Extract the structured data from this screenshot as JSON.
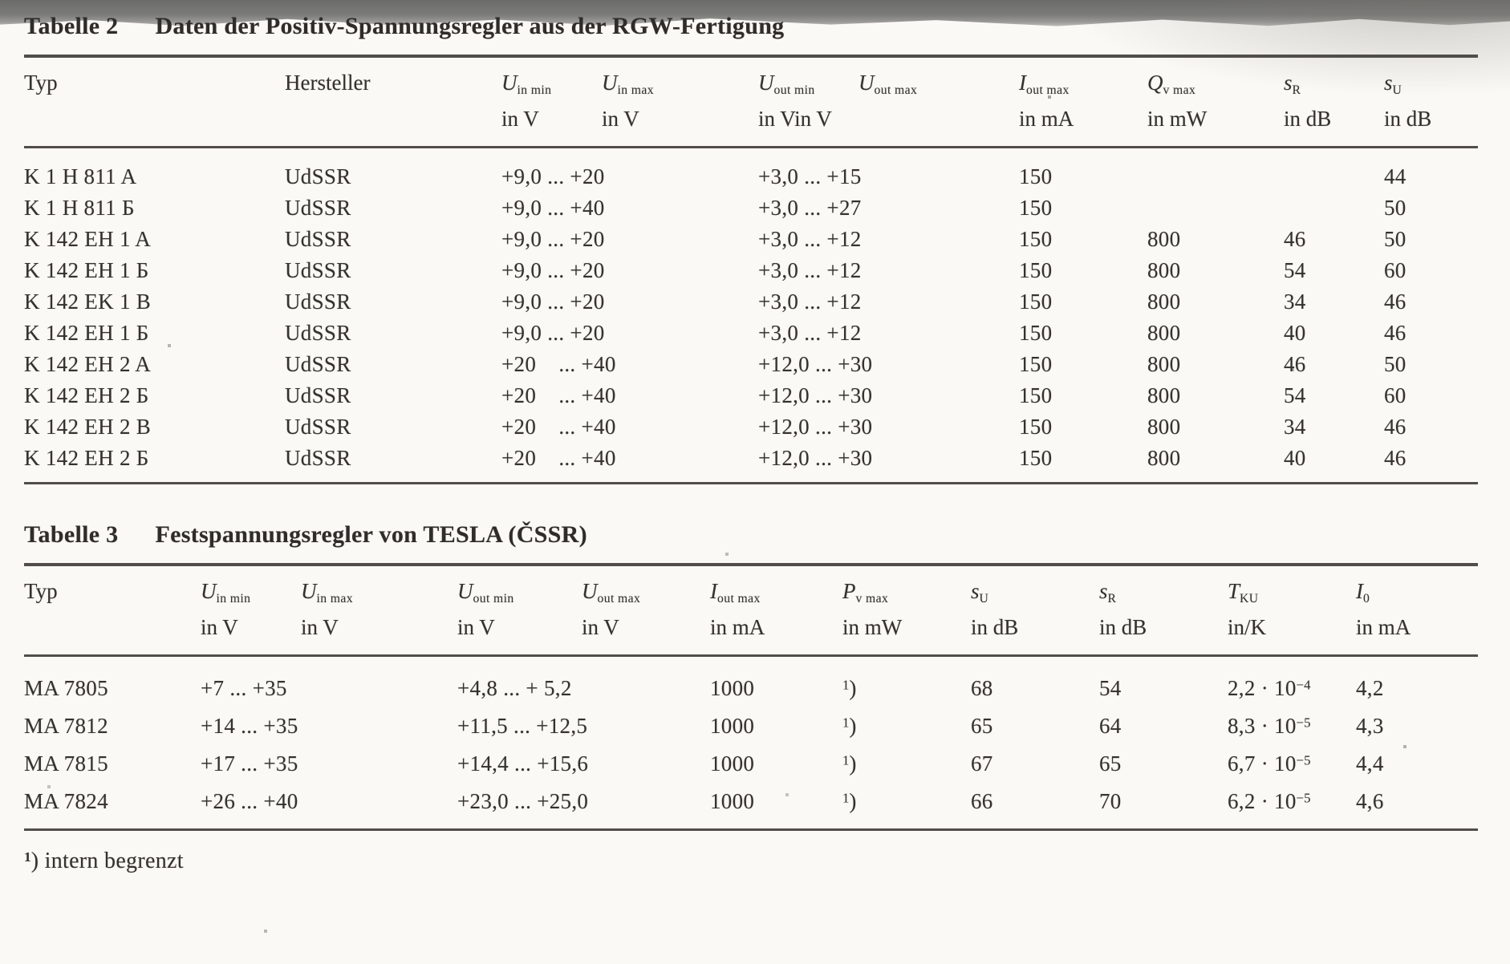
{
  "table2": {
    "label": "Tabelle 2",
    "caption": "Daten der Positiv-Spannungsregler aus der RGW-Fertigung",
    "columns": [
      {
        "sym": "Typ",
        "sub": "",
        "unit": "",
        "plain": true
      },
      {
        "sym": "Hersteller",
        "sub": "",
        "unit": "",
        "plain": true
      },
      {
        "sym": "U",
        "sub": "in min",
        "unit": "in V"
      },
      {
        "sym": "U",
        "sub": "in max",
        "unit": "in V"
      },
      {
        "sym": "U",
        "sub": "out min",
        "unit": "in Vin V"
      },
      {
        "sym": "U",
        "sub": "out max",
        "unit": ""
      },
      {
        "sym": "I",
        "sub": "out max",
        "unit": "in mA"
      },
      {
        "sym": "Q",
        "sub": "v max",
        "unit": "in mW"
      },
      {
        "sym": "s",
        "sub": "R",
        "unit": "in dB"
      },
      {
        "sym": "s",
        "sub": "U",
        "unit": "in dB"
      }
    ],
    "row_cells": [
      {
        "key": "typ",
        "span": 1,
        "class": "typ"
      },
      {
        "key": "hersteller",
        "span": 1
      },
      {
        "key": "uin",
        "span": 2,
        "class": "num"
      },
      {
        "key": "uout",
        "span": 2,
        "class": "num"
      },
      {
        "key": "iout",
        "span": 1,
        "class": "num"
      },
      {
        "key": "q",
        "span": 1,
        "class": "num"
      },
      {
        "key": "sr",
        "span": 1,
        "class": "num"
      },
      {
        "key": "su",
        "span": 1,
        "class": "num"
      }
    ],
    "rows": [
      {
        "typ": "K 1 H 811 A",
        "hersteller": "UdSSR",
        "uin": "+9,0 ... +20",
        "uout": "+3,0 ... +15",
        "iout": "150",
        "q": "",
        "sr": "",
        "su": "44"
      },
      {
        "typ": "K 1 H 811 Б",
        "hersteller": "UdSSR",
        "uin": "+9,0 ... +40",
        "uout": "+3,0 ... +27",
        "iout": "150",
        "q": "",
        "sr": "",
        "su": "50"
      },
      {
        "typ": "K 142 EH 1 A",
        "hersteller": "UdSSR",
        "uin": "+9,0 ... +20",
        "uout": "+3,0 ... +12",
        "iout": "150",
        "q": "800",
        "sr": "46",
        "su": "50"
      },
      {
        "typ": "K 142 EH 1 Б",
        "hersteller": "UdSSR",
        "uin": "+9,0 ... +20",
        "uout": "+3,0 ... +12",
        "iout": "150",
        "q": "800",
        "sr": "54",
        "su": "60"
      },
      {
        "typ": "K 142 EK 1 B",
        "hersteller": "UdSSR",
        "uin": "+9,0 ... +20",
        "uout": "+3,0 ... +12",
        "iout": "150",
        "q": "800",
        "sr": "34",
        "su": "46"
      },
      {
        "typ": "K 142 EH 1 Б",
        "hersteller": "UdSSR",
        "uin": "+9,0 ... +20",
        "uout": "+3,0 ... +12",
        "iout": "150",
        "q": "800",
        "sr": "40",
        "su": "46"
      },
      {
        "typ": "K 142 EH 2 A",
        "hersteller": "UdSSR",
        "uin": "+20    ... +40",
        "uout": "+12,0 ... +30",
        "iout": "150",
        "q": "800",
        "sr": "46",
        "su": "50"
      },
      {
        "typ": "K 142 EH 2 Б",
        "hersteller": "UdSSR",
        "uin": "+20    ... +40",
        "uout": "+12,0 ... +30",
        "iout": "150",
        "q": "800",
        "sr": "54",
        "su": "60"
      },
      {
        "typ": "K 142 EH 2 B",
        "hersteller": "UdSSR",
        "uin": "+20    ... +40",
        "uout": "+12,0 ... +30",
        "iout": "150",
        "q": "800",
        "sr": "34",
        "su": "46"
      },
      {
        "typ": "K 142 EH 2 Б",
        "hersteller": "UdSSR",
        "uin": "+20    ... +40",
        "uout": "+12,0 ... +30",
        "iout": "150",
        "q": "800",
        "sr": "40",
        "su": "46"
      }
    ]
  },
  "table3": {
    "label": "Tabelle 3",
    "caption": "Festspannungsregler von TESLA (ČSSR)",
    "columns": [
      {
        "sym": "Typ",
        "sub": "",
        "unit": "",
        "plain": true
      },
      {
        "sym": "U",
        "sub": "in min",
        "unit": "in V"
      },
      {
        "sym": "U",
        "sub": "in max",
        "unit": "in V"
      },
      {
        "sym": "U",
        "sub": "out min",
        "unit": "in V"
      },
      {
        "sym": "U",
        "sub": "out max",
        "unit": "in V"
      },
      {
        "sym": "I",
        "sub": "out max",
        "unit": "in mA"
      },
      {
        "sym": "P",
        "sub": "v max",
        "unit": "in mW"
      },
      {
        "sym": "s",
        "sub": "U",
        "unit": "in dB"
      },
      {
        "sym": "s",
        "sub": "R",
        "unit": "in dB"
      },
      {
        "sym": "T",
        "sub": "KU",
        "unit": "in/K"
      },
      {
        "sym": "I",
        "sub": "0",
        "unit": "in mA"
      }
    ],
    "row_cells": [
      {
        "key": "typ",
        "span": 1,
        "class": "typ"
      },
      {
        "key": "uin",
        "span": 2,
        "class": "num"
      },
      {
        "key": "uout",
        "span": 2,
        "class": "num"
      },
      {
        "key": "iout",
        "span": 1,
        "class": "num"
      },
      {
        "key": "pv",
        "span": 1,
        "class": "num"
      },
      {
        "key": "su",
        "span": 1,
        "class": "num"
      },
      {
        "key": "sr",
        "span": 1,
        "class": "num"
      },
      {
        "key": "tku",
        "span": 1,
        "class": "num"
      },
      {
        "key": "i0",
        "span": 1,
        "class": "num"
      }
    ],
    "rows": [
      {
        "typ": "MA 7805",
        "uin": "+7 ... +35",
        "uout": "+4,8 ... + 5,2",
        "iout": "1000",
        "pv": "^{1})",
        "su": "68",
        "sr": "54",
        "tku": "2,2 · 10^{−4}",
        "i0": "4,2"
      },
      {
        "typ": "MA 7812",
        "uin": "+14 ... +35",
        "uout": "+11,5 ... +12,5",
        "iout": "1000",
        "pv": "^{1})",
        "su": "65",
        "sr": "64",
        "tku": "8,3 · 10^{−5}",
        "i0": "4,3"
      },
      {
        "typ": "MA 7815",
        "uin": "+17 ... +35",
        "uout": "+14,4 ... +15,6",
        "iout": "1000",
        "pv": "^{1})",
        "su": "67",
        "sr": "65",
        "tku": "6,7 · 10^{−5}",
        "i0": "4,4"
      },
      {
        "typ": "MA 7824",
        "uin": "+26 ... +40",
        "uout": "+23,0 ... +25,0",
        "iout": "1000",
        "pv": "^{1})",
        "su": "66",
        "sr": "70",
        "tku": "6,2 · 10^{−5}",
        "i0": "4,6"
      }
    ]
  },
  "footnote": {
    "marker": "1",
    "rest": ") intern begrenzt"
  }
}
